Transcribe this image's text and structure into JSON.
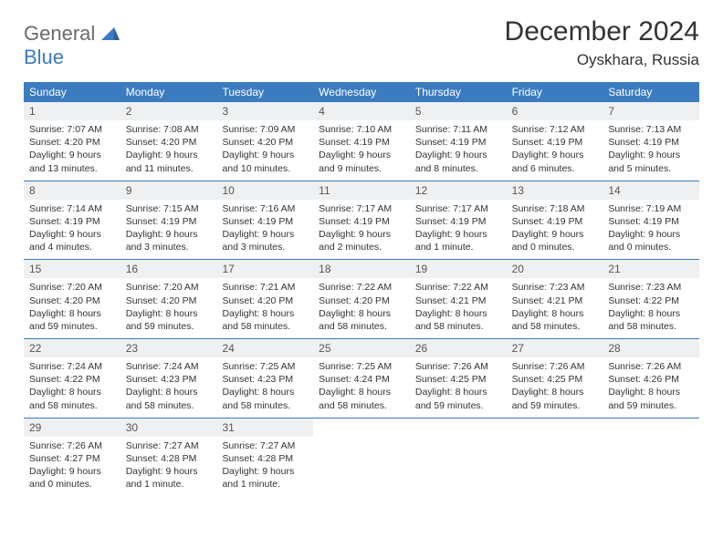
{
  "brand": {
    "part1": "General",
    "part2": "Blue"
  },
  "header": {
    "title": "December 2024",
    "location": "Oyskhara, Russia"
  },
  "colors": {
    "header_band": "#3b7bbf",
    "header_text": "#ffffff",
    "daynum_band": "#eef0f2",
    "rule": "#3b7bbf",
    "text": "#333333",
    "logo_gray": "#6b6b6b",
    "logo_blue": "#3b7bbf",
    "background": "#ffffff"
  },
  "typography": {
    "title_fontsize": 30,
    "location_fontsize": 17,
    "dow_fontsize": 12,
    "daynum_fontsize": 12,
    "body_fontsize": 10.5,
    "font_family": "Arial"
  },
  "dow": [
    "Sunday",
    "Monday",
    "Tuesday",
    "Wednesday",
    "Thursday",
    "Friday",
    "Saturday"
  ],
  "weeks": [
    [
      {
        "n": "1",
        "sr": "Sunrise: 7:07 AM",
        "ss": "Sunset: 4:20 PM",
        "dl1": "Daylight: 9 hours",
        "dl2": "and 13 minutes."
      },
      {
        "n": "2",
        "sr": "Sunrise: 7:08 AM",
        "ss": "Sunset: 4:20 PM",
        "dl1": "Daylight: 9 hours",
        "dl2": "and 11 minutes."
      },
      {
        "n": "3",
        "sr": "Sunrise: 7:09 AM",
        "ss": "Sunset: 4:20 PM",
        "dl1": "Daylight: 9 hours",
        "dl2": "and 10 minutes."
      },
      {
        "n": "4",
        "sr": "Sunrise: 7:10 AM",
        "ss": "Sunset: 4:19 PM",
        "dl1": "Daylight: 9 hours",
        "dl2": "and 9 minutes."
      },
      {
        "n": "5",
        "sr": "Sunrise: 7:11 AM",
        "ss": "Sunset: 4:19 PM",
        "dl1": "Daylight: 9 hours",
        "dl2": "and 8 minutes."
      },
      {
        "n": "6",
        "sr": "Sunrise: 7:12 AM",
        "ss": "Sunset: 4:19 PM",
        "dl1": "Daylight: 9 hours",
        "dl2": "and 6 minutes."
      },
      {
        "n": "7",
        "sr": "Sunrise: 7:13 AM",
        "ss": "Sunset: 4:19 PM",
        "dl1": "Daylight: 9 hours",
        "dl2": "and 5 minutes."
      }
    ],
    [
      {
        "n": "8",
        "sr": "Sunrise: 7:14 AM",
        "ss": "Sunset: 4:19 PM",
        "dl1": "Daylight: 9 hours",
        "dl2": "and 4 minutes."
      },
      {
        "n": "9",
        "sr": "Sunrise: 7:15 AM",
        "ss": "Sunset: 4:19 PM",
        "dl1": "Daylight: 9 hours",
        "dl2": "and 3 minutes."
      },
      {
        "n": "10",
        "sr": "Sunrise: 7:16 AM",
        "ss": "Sunset: 4:19 PM",
        "dl1": "Daylight: 9 hours",
        "dl2": "and 3 minutes."
      },
      {
        "n": "11",
        "sr": "Sunrise: 7:17 AM",
        "ss": "Sunset: 4:19 PM",
        "dl1": "Daylight: 9 hours",
        "dl2": "and 2 minutes."
      },
      {
        "n": "12",
        "sr": "Sunrise: 7:17 AM",
        "ss": "Sunset: 4:19 PM",
        "dl1": "Daylight: 9 hours",
        "dl2": "and 1 minute."
      },
      {
        "n": "13",
        "sr": "Sunrise: 7:18 AM",
        "ss": "Sunset: 4:19 PM",
        "dl1": "Daylight: 9 hours",
        "dl2": "and 0 minutes."
      },
      {
        "n": "14",
        "sr": "Sunrise: 7:19 AM",
        "ss": "Sunset: 4:19 PM",
        "dl1": "Daylight: 9 hours",
        "dl2": "and 0 minutes."
      }
    ],
    [
      {
        "n": "15",
        "sr": "Sunrise: 7:20 AM",
        "ss": "Sunset: 4:20 PM",
        "dl1": "Daylight: 8 hours",
        "dl2": "and 59 minutes."
      },
      {
        "n": "16",
        "sr": "Sunrise: 7:20 AM",
        "ss": "Sunset: 4:20 PM",
        "dl1": "Daylight: 8 hours",
        "dl2": "and 59 minutes."
      },
      {
        "n": "17",
        "sr": "Sunrise: 7:21 AM",
        "ss": "Sunset: 4:20 PM",
        "dl1": "Daylight: 8 hours",
        "dl2": "and 58 minutes."
      },
      {
        "n": "18",
        "sr": "Sunrise: 7:22 AM",
        "ss": "Sunset: 4:20 PM",
        "dl1": "Daylight: 8 hours",
        "dl2": "and 58 minutes."
      },
      {
        "n": "19",
        "sr": "Sunrise: 7:22 AM",
        "ss": "Sunset: 4:21 PM",
        "dl1": "Daylight: 8 hours",
        "dl2": "and 58 minutes."
      },
      {
        "n": "20",
        "sr": "Sunrise: 7:23 AM",
        "ss": "Sunset: 4:21 PM",
        "dl1": "Daylight: 8 hours",
        "dl2": "and 58 minutes."
      },
      {
        "n": "21",
        "sr": "Sunrise: 7:23 AM",
        "ss": "Sunset: 4:22 PM",
        "dl1": "Daylight: 8 hours",
        "dl2": "and 58 minutes."
      }
    ],
    [
      {
        "n": "22",
        "sr": "Sunrise: 7:24 AM",
        "ss": "Sunset: 4:22 PM",
        "dl1": "Daylight: 8 hours",
        "dl2": "and 58 minutes."
      },
      {
        "n": "23",
        "sr": "Sunrise: 7:24 AM",
        "ss": "Sunset: 4:23 PM",
        "dl1": "Daylight: 8 hours",
        "dl2": "and 58 minutes."
      },
      {
        "n": "24",
        "sr": "Sunrise: 7:25 AM",
        "ss": "Sunset: 4:23 PM",
        "dl1": "Daylight: 8 hours",
        "dl2": "and 58 minutes."
      },
      {
        "n": "25",
        "sr": "Sunrise: 7:25 AM",
        "ss": "Sunset: 4:24 PM",
        "dl1": "Daylight: 8 hours",
        "dl2": "and 58 minutes."
      },
      {
        "n": "26",
        "sr": "Sunrise: 7:26 AM",
        "ss": "Sunset: 4:25 PM",
        "dl1": "Daylight: 8 hours",
        "dl2": "and 59 minutes."
      },
      {
        "n": "27",
        "sr": "Sunrise: 7:26 AM",
        "ss": "Sunset: 4:25 PM",
        "dl1": "Daylight: 8 hours",
        "dl2": "and 59 minutes."
      },
      {
        "n": "28",
        "sr": "Sunrise: 7:26 AM",
        "ss": "Sunset: 4:26 PM",
        "dl1": "Daylight: 8 hours",
        "dl2": "and 59 minutes."
      }
    ],
    [
      {
        "n": "29",
        "sr": "Sunrise: 7:26 AM",
        "ss": "Sunset: 4:27 PM",
        "dl1": "Daylight: 9 hours",
        "dl2": "and 0 minutes."
      },
      {
        "n": "30",
        "sr": "Sunrise: 7:27 AM",
        "ss": "Sunset: 4:28 PM",
        "dl1": "Daylight: 9 hours",
        "dl2": "and 1 minute."
      },
      {
        "n": "31",
        "sr": "Sunrise: 7:27 AM",
        "ss": "Sunset: 4:28 PM",
        "dl1": "Daylight: 9 hours",
        "dl2": "and 1 minute."
      },
      {
        "empty": true
      },
      {
        "empty": true
      },
      {
        "empty": true
      },
      {
        "empty": true
      }
    ]
  ]
}
